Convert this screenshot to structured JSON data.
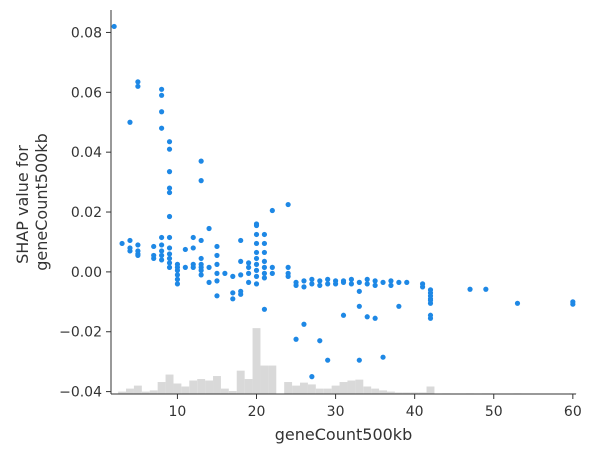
{
  "chart_data": {
    "type": "scatter",
    "title": "",
    "xlabel": "geneCount500kb",
    "ylabel_lines": [
      "SHAP value for",
      "geneCount500kb"
    ],
    "xlim": [
      1.6,
      60.4
    ],
    "ylim": [
      -0.0408,
      0.0875
    ],
    "x_ticks": [
      10,
      20,
      30,
      40,
      50,
      60
    ],
    "x_tick_labels": [
      "10",
      "20",
      "30",
      "40",
      "50",
      "60"
    ],
    "y_ticks": [
      -0.04,
      -0.02,
      0.0,
      0.02,
      0.04,
      0.06,
      0.08
    ],
    "y_tick_labels": [
      "−0.04",
      "−0.02",
      "0.00",
      "0.02",
      "0.04",
      "0.06",
      "0.08"
    ],
    "grid": false,
    "point_color": "#1e88e5",
    "histogram_color": "#d9d9d9",
    "points": [
      [
        2,
        0.082
      ],
      [
        3,
        0.0095
      ],
      [
        4,
        0.05
      ],
      [
        4,
        0.0105
      ],
      [
        4,
        0.008
      ],
      [
        4,
        0.007
      ],
      [
        5,
        0.0635
      ],
      [
        5,
        0.062
      ],
      [
        5,
        0.009
      ],
      [
        5,
        0.007
      ],
      [
        5,
        0.006
      ],
      [
        5,
        0.0055
      ],
      [
        7,
        0.0085
      ],
      [
        7,
        0.0055
      ],
      [
        7,
        0.0045
      ],
      [
        8,
        0.061
      ],
      [
        8,
        0.059
      ],
      [
        8,
        0.0535
      ],
      [
        8,
        0.048
      ],
      [
        8,
        0.0115
      ],
      [
        8,
        0.009
      ],
      [
        8,
        0.007
      ],
      [
        8,
        0.0055
      ],
      [
        8,
        0.004
      ],
      [
        9,
        0.0435
      ],
      [
        9,
        0.041
      ],
      [
        9,
        0.0335
      ],
      [
        9,
        0.028
      ],
      [
        9,
        0.0265
      ],
      [
        9,
        0.0185
      ],
      [
        9,
        0.0115
      ],
      [
        9,
        0.008
      ],
      [
        9,
        0.006
      ],
      [
        9,
        0.0045
      ],
      [
        9,
        0.003
      ],
      [
        9,
        0.0015
      ],
      [
        10,
        0.0025
      ],
      [
        10,
        0.0015
      ],
      [
        10,
        0.0005
      ],
      [
        10,
        -0.001
      ],
      [
        10,
        -0.0025
      ],
      [
        10,
        -0.004
      ],
      [
        11,
        0.0075
      ],
      [
        11,
        0.0015
      ],
      [
        12,
        0.0115
      ],
      [
        12,
        0.008
      ],
      [
        12,
        0.0025
      ],
      [
        12,
        0.0015
      ],
      [
        13,
        0.037
      ],
      [
        13,
        0.0305
      ],
      [
        13,
        0.0105
      ],
      [
        13,
        0.0045
      ],
      [
        13,
        0.0025
      ],
      [
        13,
        0.0015
      ],
      [
        13,
        0.0005
      ],
      [
        13,
        -0.001
      ],
      [
        14,
        0.0145
      ],
      [
        14,
        0.0015
      ],
      [
        14,
        -0.0035
      ],
      [
        15,
        0.0085
      ],
      [
        15,
        0.0055
      ],
      [
        15,
        0.0025
      ],
      [
        15,
        -0.0005
      ],
      [
        15,
        -0.003
      ],
      [
        15,
        -0.008
      ],
      [
        16,
        -0.0005
      ],
      [
        17,
        -0.0015
      ],
      [
        17,
        -0.007
      ],
      [
        17,
        -0.009
      ],
      [
        18,
        0.0105
      ],
      [
        18,
        0.0035
      ],
      [
        18,
        -0.001
      ],
      [
        18,
        -0.0065
      ],
      [
        18,
        -0.0075
      ],
      [
        19,
        0.003
      ],
      [
        19,
        0.0015
      ],
      [
        19,
        -0.0005
      ],
      [
        19,
        -0.0035
      ],
      [
        20,
        0.016
      ],
      [
        20,
        0.0155
      ],
      [
        20,
        0.0125
      ],
      [
        20,
        0.0095
      ],
      [
        20,
        0.0065
      ],
      [
        20,
        0.0045
      ],
      [
        20,
        0.0025
      ],
      [
        20,
        0.0005
      ],
      [
        20,
        -0.0015
      ],
      [
        20,
        -0.004
      ],
      [
        21,
        0.0125
      ],
      [
        21,
        0.0095
      ],
      [
        21,
        0.0065
      ],
      [
        21,
        0.0035
      ],
      [
        21,
        0.0015
      ],
      [
        21,
        -0.0005
      ],
      [
        21,
        -0.002
      ],
      [
        21,
        -0.0125
      ],
      [
        22,
        0.0205
      ],
      [
        22,
        0.0015
      ],
      [
        22,
        -0.0005
      ],
      [
        24,
        0.0225
      ],
      [
        24,
        0.0015
      ],
      [
        24,
        -0.0005
      ],
      [
        24,
        -0.0015
      ],
      [
        25,
        -0.0035
      ],
      [
        25,
        -0.0045
      ],
      [
        25,
        -0.0225
      ],
      [
        26,
        -0.003
      ],
      [
        26,
        -0.005
      ],
      [
        26,
        -0.0175
      ],
      [
        27,
        -0.0025
      ],
      [
        27,
        -0.004
      ],
      [
        27,
        -0.035
      ],
      [
        28,
        -0.003
      ],
      [
        28,
        -0.0045
      ],
      [
        28,
        -0.023
      ],
      [
        29,
        -0.0025
      ],
      [
        29,
        -0.004
      ],
      [
        29,
        -0.0295
      ],
      [
        30,
        -0.003
      ],
      [
        30,
        -0.004
      ],
      [
        31,
        -0.003
      ],
      [
        31,
        -0.0035
      ],
      [
        31,
        -0.0145
      ],
      [
        32,
        -0.0025
      ],
      [
        32,
        -0.004
      ],
      [
        33,
        -0.0035
      ],
      [
        33,
        -0.0065
      ],
      [
        33,
        -0.0115
      ],
      [
        33,
        -0.0295
      ],
      [
        34,
        -0.0025
      ],
      [
        34,
        -0.004
      ],
      [
        34,
        -0.015
      ],
      [
        35,
        -0.003
      ],
      [
        35,
        -0.0045
      ],
      [
        35,
        -0.0155
      ],
      [
        36,
        -0.0035
      ],
      [
        36,
        -0.0285
      ],
      [
        37,
        -0.003
      ],
      [
        37,
        -0.0045
      ],
      [
        38,
        -0.0035
      ],
      [
        38,
        -0.0115
      ],
      [
        39,
        -0.0035
      ],
      [
        41,
        -0.004
      ],
      [
        41,
        -0.005
      ],
      [
        42,
        -0.006
      ],
      [
        42,
        -0.007
      ],
      [
        42,
        -0.008
      ],
      [
        42,
        -0.009
      ],
      [
        42,
        -0.0095
      ],
      [
        42,
        -0.0105
      ],
      [
        42,
        -0.0145
      ],
      [
        42,
        -0.0155
      ],
      [
        47,
        -0.0058
      ],
      [
        49,
        -0.0058
      ],
      [
        53,
        -0.0105
      ],
      [
        60,
        -0.01
      ],
      [
        60,
        -0.0108
      ]
    ],
    "histogram": [
      [
        3,
        0.0008
      ],
      [
        4,
        0.0018
      ],
      [
        5,
        0.0028
      ],
      [
        6,
        0.0008
      ],
      [
        7,
        0.0012
      ],
      [
        8,
        0.004
      ],
      [
        9,
        0.0065
      ],
      [
        10,
        0.0035
      ],
      [
        11,
        0.0025
      ],
      [
        12,
        0.0045
      ],
      [
        13,
        0.005
      ],
      [
        14,
        0.0045
      ],
      [
        15,
        0.006
      ],
      [
        16,
        0.0018
      ],
      [
        17,
        0.001
      ],
      [
        18,
        0.0078
      ],
      [
        19,
        0.005
      ],
      [
        20,
        0.022
      ],
      [
        21,
        0.0095
      ],
      [
        22,
        0.0095
      ],
      [
        24,
        0.004
      ],
      [
        25,
        0.0028
      ],
      [
        26,
        0.0038
      ],
      [
        27,
        0.0032
      ],
      [
        28,
        0.0018
      ],
      [
        29,
        0.0018
      ],
      [
        30,
        0.0028
      ],
      [
        31,
        0.004
      ],
      [
        32,
        0.0045
      ],
      [
        33,
        0.0048
      ],
      [
        34,
        0.0025
      ],
      [
        35,
        0.0018
      ],
      [
        36,
        0.0012
      ],
      [
        37,
        0.0008
      ],
      [
        38,
        0.0005
      ],
      [
        39,
        0.0005
      ],
      [
        40,
        0.0005
      ],
      [
        41,
        0.0005
      ],
      [
        42,
        0.0025
      ],
      [
        44,
        0.0002
      ],
      [
        47,
        0.0002
      ],
      [
        49,
        0.0002
      ],
      [
        53,
        0.0002
      ],
      [
        60,
        0.0002
      ]
    ]
  }
}
